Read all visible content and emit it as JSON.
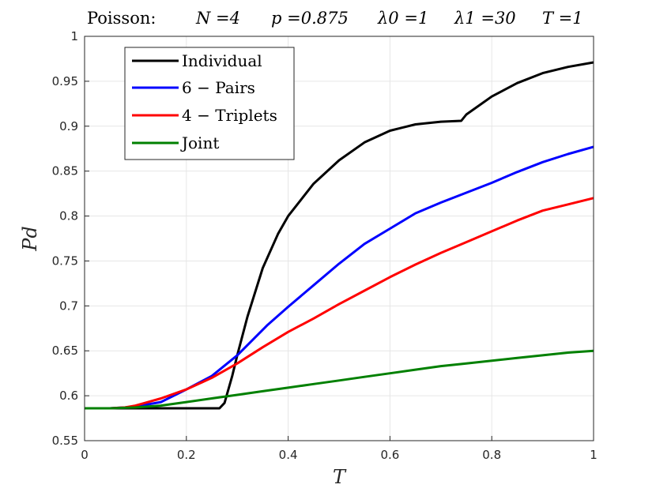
{
  "chart_data": {
    "type": "line",
    "title": {
      "prefix": "Poisson:",
      "n": "N =4",
      "p": "p =0.875",
      "lambda0": "λ0 =1",
      "lambda1": "λ1 =30",
      "t": "T =1"
    },
    "xlabel": "T",
    "ylabel": "Pd",
    "xlim": [
      0,
      1
    ],
    "ylim": [
      0.55,
      1
    ],
    "xticks": [
      0,
      0.2,
      0.4,
      0.6,
      0.8,
      1
    ],
    "xtick_labels": [
      "0",
      "0.2",
      "0.4",
      "0.6",
      "0.8",
      "1"
    ],
    "yticks": [
      0.55,
      0.6,
      0.65,
      0.7,
      0.75,
      0.8,
      0.85,
      0.9,
      0.95,
      1
    ],
    "ytick_labels": [
      "0.55",
      "0.6",
      "0.65",
      "0.7",
      "0.75",
      "0.8",
      "0.85",
      "0.9",
      "0.95",
      "1"
    ],
    "grid": true,
    "legend_position": "top-left",
    "series": [
      {
        "name": "Individual",
        "color": "#000000",
        "x": [
          0,
          0.1,
          0.2,
          0.265,
          0.275,
          0.29,
          0.3,
          0.32,
          0.35,
          0.38,
          0.4,
          0.45,
          0.5,
          0.55,
          0.6,
          0.65,
          0.7,
          0.74,
          0.75,
          0.8,
          0.85,
          0.9,
          0.95,
          1.0
        ],
        "y": [
          0.586,
          0.586,
          0.586,
          0.586,
          0.592,
          0.622,
          0.645,
          0.688,
          0.742,
          0.78,
          0.8,
          0.836,
          0.862,
          0.882,
          0.895,
          0.902,
          0.905,
          0.906,
          0.913,
          0.933,
          0.948,
          0.959,
          0.966,
          0.971
        ]
      },
      {
        "name": "6 − Pairs",
        "color": "#0000ff",
        "x": [
          0,
          0.05,
          0.08,
          0.1,
          0.15,
          0.2,
          0.25,
          0.3,
          0.33,
          0.36,
          0.4,
          0.45,
          0.5,
          0.55,
          0.6,
          0.65,
          0.7,
          0.75,
          0.8,
          0.85,
          0.9,
          0.95,
          1.0
        ],
        "y": [
          0.586,
          0.586,
          0.587,
          0.588,
          0.593,
          0.607,
          0.622,
          0.645,
          0.662,
          0.679,
          0.699,
          0.723,
          0.747,
          0.769,
          0.786,
          0.803,
          0.815,
          0.826,
          0.837,
          0.849,
          0.86,
          0.869,
          0.877
        ]
      },
      {
        "name": "4 − Triplets",
        "color": "#ff0000",
        "x": [
          0,
          0.05,
          0.08,
          0.1,
          0.15,
          0.2,
          0.25,
          0.3,
          0.35,
          0.4,
          0.45,
          0.5,
          0.55,
          0.6,
          0.65,
          0.7,
          0.75,
          0.8,
          0.85,
          0.9,
          0.95,
          1.0
        ],
        "y": [
          0.586,
          0.586,
          0.587,
          0.589,
          0.597,
          0.607,
          0.62,
          0.636,
          0.654,
          0.671,
          0.686,
          0.702,
          0.717,
          0.732,
          0.746,
          0.759,
          0.771,
          0.783,
          0.795,
          0.806,
          0.813,
          0.82
        ]
      },
      {
        "name": "Joint",
        "color": "#008000",
        "x": [
          0,
          0.05,
          0.1,
          0.15,
          0.2,
          0.25,
          0.3,
          0.35,
          0.4,
          0.45,
          0.5,
          0.55,
          0.6,
          0.65,
          0.7,
          0.75,
          0.8,
          0.85,
          0.9,
          0.95,
          1.0
        ],
        "y": [
          0.586,
          0.586,
          0.587,
          0.589,
          0.593,
          0.597,
          0.601,
          0.605,
          0.609,
          0.613,
          0.617,
          0.621,
          0.625,
          0.629,
          0.633,
          0.636,
          0.639,
          0.642,
          0.645,
          0.648,
          0.65
        ]
      }
    ]
  }
}
